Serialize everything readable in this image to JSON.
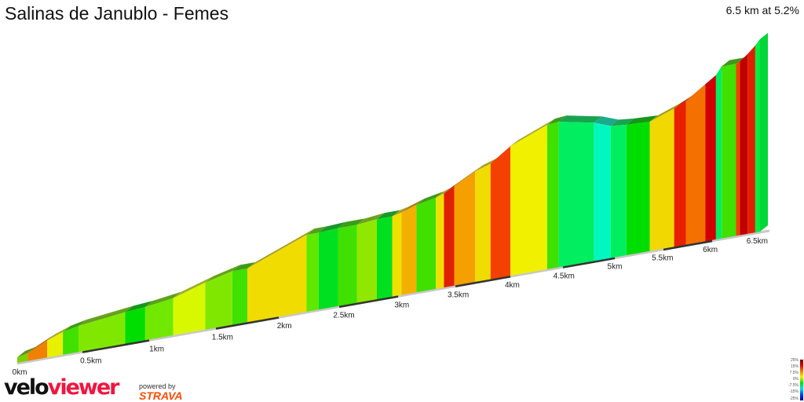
{
  "header": {
    "title": "Salinas de Janublo - Femes",
    "summary": "6.5 km at 5.2%"
  },
  "chart_data": {
    "type": "area",
    "title": "Salinas de Janublo - Femes",
    "xlabel": "",
    "ylabel": "",
    "x_unit": "km",
    "xlim": [
      0,
      6.5
    ],
    "x_ticks": [
      "0km",
      "0.5km",
      "1km",
      "1.5km",
      "2km",
      "2.5km",
      "3km",
      "3.5km",
      "4km",
      "4.5km",
      "5km",
      "5.5km",
      "6km",
      "6.5km"
    ],
    "profile_km": [
      0,
      0.08,
      0.23,
      0.35,
      0.47,
      0.82,
      0.97,
      1.18,
      1.42,
      1.63,
      1.75,
      2.23,
      2.33,
      2.49,
      2.65,
      2.82,
      2.95,
      3.03,
      3.16,
      3.33,
      3.4,
      3.49,
      3.68,
      3.82,
      4.0,
      4.35,
      4.46,
      4.8,
      4.96,
      5.12,
      5.36,
      5.61,
      5.73,
      5.93,
      6.04,
      6.1,
      6.25,
      6.29,
      6.37,
      6.45,
      6.5
    ],
    "relative_elevation_m": [
      0,
      4,
      21,
      31,
      37,
      47,
      50,
      57,
      75,
      87,
      87,
      129,
      129,
      131,
      131,
      135,
      135,
      139,
      148,
      155,
      160,
      170,
      190,
      199,
      224,
      251,
      253,
      240,
      229,
      226,
      224,
      240,
      250,
      274,
      287,
      301,
      301,
      304,
      315,
      328,
      338
    ],
    "segment_colors": [
      "#7cd000",
      "#f08000",
      "#e8f000",
      "#40e000",
      "#80e800",
      "#00dd00",
      "#70e800",
      "#d8f800",
      "#80e800",
      "#40e000",
      "#f0dc00",
      "#60e800",
      "#00e020",
      "#40e000",
      "#90e800",
      "#00e020",
      "#f0e000",
      "#f4b000",
      "#40e000",
      "#f0e000",
      "#e02000",
      "#f4a000",
      "#f0dc00",
      "#f44000",
      "#f0f000",
      "#40e000",
      "#00ee60",
      "#00f8c0",
      "#00ee60",
      "#00dd00",
      "#f0d800",
      "#e82000",
      "#f47000",
      "#d00000",
      "#00ee60",
      "#40e000",
      "#f44000",
      "#c00000",
      "#e02000",
      "#00ee40"
    ],
    "grid": false,
    "legend": {
      "placement": "bottom-right",
      "labels": [
        "25%",
        "15%",
        "7.5%",
        "0%",
        "-7.5%",
        "-15%",
        "-25%"
      ]
    }
  },
  "branding": {
    "logo_a": "velo",
    "logo_b": "viewer",
    "powered": "powered by",
    "strava": "STRAVA"
  }
}
